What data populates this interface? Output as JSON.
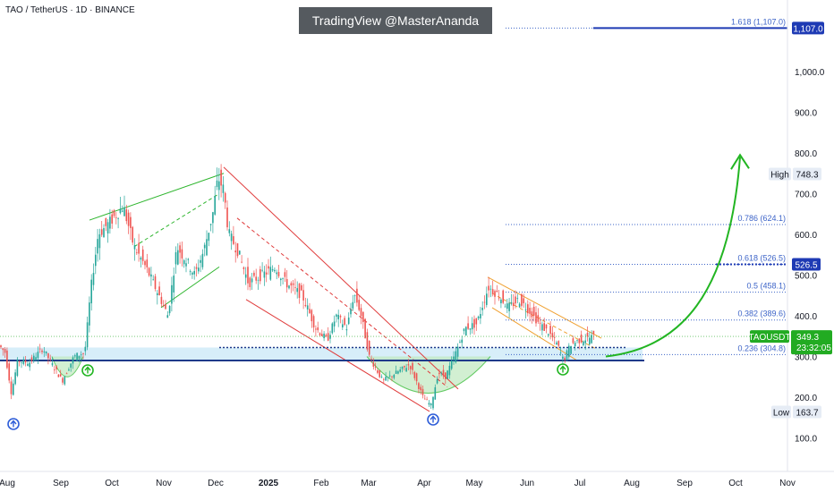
{
  "header": {
    "symbol_line": "TAO / TetherUS · 1D · BINANCE"
  },
  "watermark": "TradingView @MasterAnanda",
  "chart_data": {
    "type": "candlestick",
    "symbol": "TAOUSDT",
    "exchange": "BINANCE",
    "timeframe": "1D",
    "x_labels": [
      "Aug",
      "Sep",
      "Oct",
      "Nov",
      "Dec",
      "2025",
      "Feb",
      "Mar",
      "Apr",
      "May",
      "Jun",
      "Jul",
      "Aug",
      "Sep",
      "Oct",
      "Nov"
    ],
    "y_ticks": [
      "100.0",
      "200.0",
      "300.0",
      "400.0",
      "500.0",
      "600.0",
      "700.0",
      "800.0",
      "900.0",
      "1,000.0"
    ],
    "ylim": [
      0,
      1150
    ],
    "price_path": [
      [
        0,
        330
      ],
      [
        8,
        310
      ],
      [
        15,
        210
      ],
      [
        22,
        290
      ],
      [
        35,
        285
      ],
      [
        50,
        320
      ],
      [
        58,
        290
      ],
      [
        72,
        240
      ],
      [
        85,
        300
      ],
      [
        97,
        310
      ],
      [
        104,
        470
      ],
      [
        112,
        600
      ],
      [
        125,
        630
      ],
      [
        140,
        670
      ],
      [
        152,
        570
      ],
      [
        165,
        520
      ],
      [
        180,
        450
      ],
      [
        190,
        400
      ],
      [
        200,
        570
      ],
      [
        212,
        530
      ],
      [
        220,
        500
      ],
      [
        230,
        560
      ],
      [
        240,
        650
      ],
      [
        246,
        740
      ],
      [
        252,
        710
      ],
      [
        258,
        600
      ],
      [
        268,
        560
      ],
      [
        280,
        480
      ],
      [
        295,
        500
      ],
      [
        310,
        520
      ],
      [
        322,
        480
      ],
      [
        340,
        450
      ],
      [
        355,
        370
      ],
      [
        368,
        340
      ],
      [
        378,
        400
      ],
      [
        390,
        370
      ],
      [
        398,
        455
      ],
      [
        405,
        410
      ],
      [
        415,
        300
      ],
      [
        430,
        240
      ],
      [
        445,
        260
      ],
      [
        460,
        280
      ],
      [
        475,
        200
      ],
      [
        484,
        180
      ],
      [
        492,
        260
      ],
      [
        500,
        250
      ],
      [
        510,
        300
      ],
      [
        522,
        370
      ],
      [
        535,
        380
      ],
      [
        548,
        470
      ],
      [
        560,
        450
      ],
      [
        570,
        420
      ],
      [
        582,
        440
      ],
      [
        595,
        410
      ],
      [
        605,
        380
      ],
      [
        615,
        360
      ],
      [
        625,
        330
      ],
      [
        632,
        290
      ],
      [
        640,
        330
      ],
      [
        650,
        340
      ],
      [
        660,
        345
      ],
      [
        664,
        349
      ]
    ],
    "fib_levels": [
      {
        "label": "0.236 (304.8)",
        "value": 304.8
      },
      {
        "label": "0.382 (389.6)",
        "value": 389.6
      },
      {
        "label": "0.5 (458.1)",
        "value": 458.1
      },
      {
        "label": "0.618 (526.5)",
        "value": 526.5
      },
      {
        "label": "0.786 (624.1)",
        "value": 624.1
      },
      {
        "label": "1.618 (1,107.0)",
        "value": 1107.0
      }
    ],
    "support_level": 290,
    "dotted_level": 322,
    "price_labels": [
      {
        "label": "1,107.0",
        "value": 1107.0,
        "color": "#1e3ab4",
        "text_color": "#ffffff"
      },
      {
        "label": "526.5",
        "value": 526.5,
        "color": "#1e3ab4",
        "text_color": "#ffffff"
      },
      {
        "label": "High",
        "value": 748.3,
        "color": "#e6ecf5",
        "text_color": "#131722"
      },
      {
        "label": "748.3",
        "value": 748.3,
        "color": "#e6ecf5",
        "text_color": "#131722"
      },
      {
        "label": "Low",
        "value": 163.7,
        "color": "#e6ecf5",
        "text_color": "#131722"
      },
      {
        "label": "163.7",
        "value": 163.7,
        "color": "#e6ecf5",
        "text_color": "#131722"
      }
    ],
    "current": {
      "ticker": "TAOUSDT",
      "price": "349.3",
      "countdown": "23:32:05",
      "value": 349.3,
      "color": "#22ab22"
    },
    "colors": {
      "up": "#26a69a",
      "down": "#ef5350",
      "fib": "#3d64c8",
      "support": "#1e3a8a",
      "zone": "#cdeaf7",
      "arrow": "#22b522",
      "channel_red": "#e03c3c",
      "channel_orange": "#f0a030",
      "channel_green": "#2db52d"
    }
  }
}
